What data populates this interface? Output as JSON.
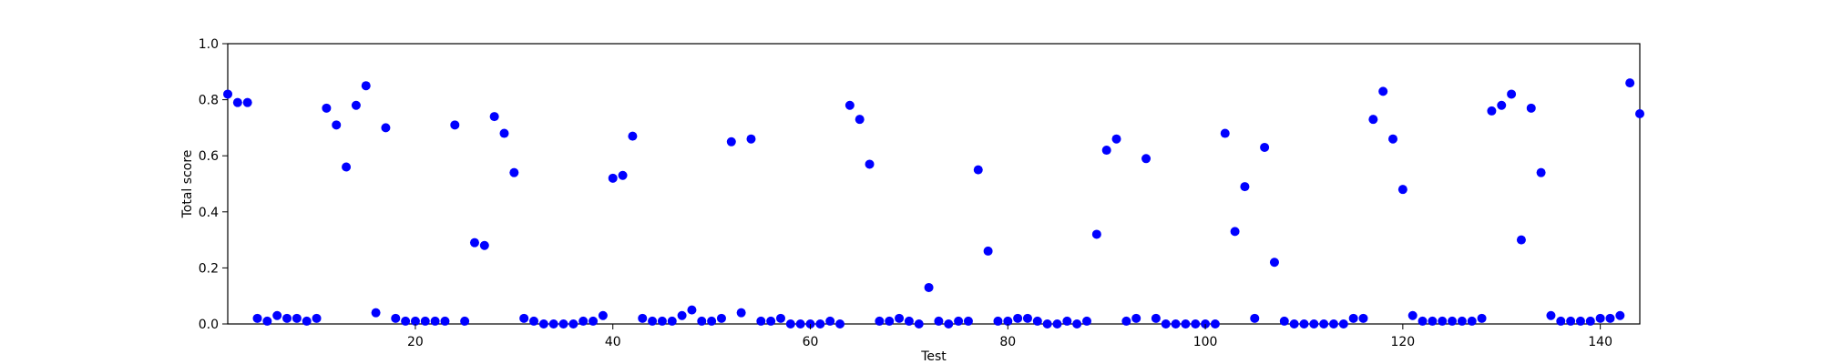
{
  "chart_data": {
    "type": "scatter",
    "title": "",
    "xlabel": "Test",
    "ylabel": "Total score",
    "xlim": [
      1,
      144
    ],
    "ylim": [
      0.0,
      1.0
    ],
    "xticks": [
      20,
      40,
      60,
      80,
      100,
      120,
      140
    ],
    "yticks": [
      0.0,
      0.2,
      0.4,
      0.6,
      0.8,
      1.0
    ],
    "xtick_labels": [
      "20",
      "40",
      "60",
      "80",
      "100",
      "120",
      "140"
    ],
    "ytick_labels": [
      "0.0",
      "0.2",
      "0.4",
      "0.6",
      "0.8",
      "1.0"
    ],
    "grid": false,
    "marker_color": "#0000ff",
    "x": [
      1,
      2,
      3,
      4,
      5,
      6,
      7,
      8,
      9,
      10,
      11,
      12,
      13,
      14,
      15,
      16,
      17,
      18,
      19,
      20,
      21,
      22,
      23,
      24,
      25,
      26,
      27,
      28,
      29,
      30,
      31,
      32,
      33,
      34,
      35,
      36,
      37,
      38,
      39,
      40,
      41,
      42,
      43,
      44,
      45,
      46,
      47,
      48,
      49,
      50,
      51,
      52,
      53,
      54,
      55,
      56,
      57,
      58,
      59,
      60,
      61,
      62,
      63,
      64,
      65,
      66,
      67,
      68,
      69,
      70,
      71,
      72,
      73,
      74,
      75,
      76,
      77,
      78,
      79,
      80,
      81,
      82,
      83,
      84,
      85,
      86,
      87,
      88,
      89,
      90,
      91,
      92,
      93,
      94,
      95,
      96,
      97,
      98,
      99,
      100,
      101,
      102,
      103,
      104,
      105,
      106,
      107,
      108,
      109,
      110,
      111,
      112,
      113,
      114,
      115,
      116,
      117,
      118,
      119,
      120,
      121,
      122,
      123,
      124,
      125,
      126,
      127,
      128,
      129,
      130,
      131,
      132,
      133,
      134,
      135,
      136,
      137,
      138,
      139,
      140,
      141,
      142,
      143,
      144
    ],
    "y": [
      0.82,
      0.79,
      0.79,
      0.02,
      0.01,
      0.03,
      0.02,
      0.02,
      0.01,
      0.02,
      0.77,
      0.71,
      0.56,
      0.78,
      0.85,
      0.04,
      0.7,
      0.02,
      0.01,
      0.01,
      0.01,
      0.01,
      0.01,
      0.71,
      0.01,
      0.29,
      0.28,
      0.74,
      0.68,
      0.54,
      0.02,
      0.01,
      0.0,
      0.0,
      0.0,
      0.0,
      0.01,
      0.01,
      0.03,
      0.52,
      0.53,
      0.67,
      0.02,
      0.01,
      0.01,
      0.01,
      0.03,
      0.05,
      0.01,
      0.01,
      0.02,
      0.65,
      0.04,
      0.66,
      0.01,
      0.01,
      0.02,
      0.0,
      0.0,
      0.0,
      0.0,
      0.01,
      0.0,
      0.78,
      0.73,
      0.57,
      0.01,
      0.01,
      0.02,
      0.01,
      0.0,
      0.13,
      0.01,
      0.0,
      0.01,
      0.01,
      0.55,
      0.26,
      0.01,
      0.01,
      0.02,
      0.02,
      0.01,
      0.0,
      0.0,
      0.01,
      0.0,
      0.01,
      0.32,
      0.62,
      0.66,
      0.01,
      0.02,
      0.59,
      0.02,
      0.0,
      0.0,
      0.0,
      0.0,
      0.0,
      0.0,
      0.68,
      0.33,
      0.49,
      0.02,
      0.63,
      0.22,
      0.01,
      0.0,
      0.0,
      0.0,
      0.0,
      0.0,
      0.0,
      0.02,
      0.02,
      0.73,
      0.83,
      0.66,
      0.48,
      0.03,
      0.01,
      0.01,
      0.01,
      0.01,
      0.01,
      0.01,
      0.02,
      0.76,
      0.78,
      0.82,
      0.3,
      0.77,
      0.54,
      0.03,
      0.01,
      0.01,
      0.01,
      0.01,
      0.02,
      0.02,
      0.03,
      0.86,
      0.75
    ]
  }
}
